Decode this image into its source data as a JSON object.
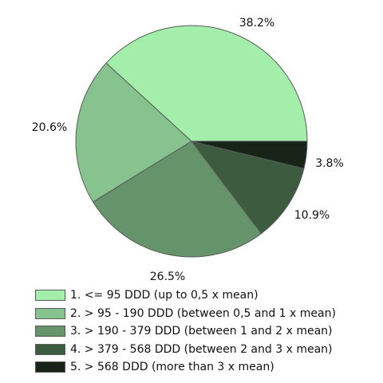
{
  "chart_data": {
    "type": "pie",
    "title": "",
    "categories": [
      "1. <= 95 DDD (up to 0,5 x mean)",
      "2. > 95 - 190 DDD (between 0,5 and 1 x mean)",
      "3. > 190 - 379 DDD (between 1 and 2 x mean)",
      "4. > 379 - 568 DDD (between 2 and 3 x mean)",
      "5. > 568 DDD (more than 3 x mean)"
    ],
    "values": [
      38.2,
      20.6,
      26.5,
      10.9,
      3.8
    ],
    "data_labels": [
      "38.2%",
      "20.6%",
      "26.5%",
      "10.9%",
      "3.8%"
    ],
    "colors": [
      "#a3eeaa",
      "#87c38f",
      "#65946b",
      "#3c5c40",
      "#182418"
    ],
    "legend_position": "bottom"
  }
}
